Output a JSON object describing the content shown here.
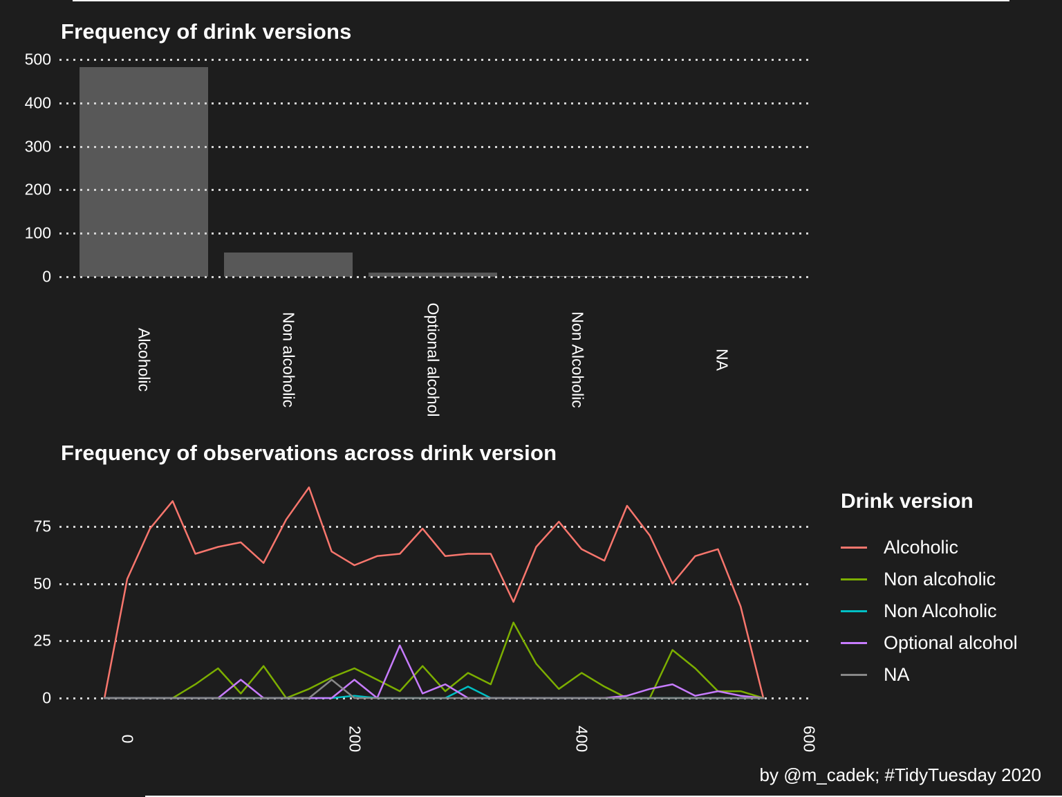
{
  "page": {
    "background": "#1d1d1d",
    "caption": "by @m_cadek; #TidyTuesday 2020"
  },
  "chart_data": [
    {
      "type": "bar",
      "title": "Frequency of drink versions",
      "categories": [
        "Alcoholic",
        "Non alcoholic",
        "Optional alcohol",
        "Non Alcoholic",
        "NA"
      ],
      "values": [
        483,
        56,
        9,
        2,
        1
      ],
      "xlabel": "",
      "ylabel": "",
      "ylim": [
        0,
        500
      ],
      "yticks": [
        0,
        100,
        200,
        300,
        400,
        500
      ],
      "bar_color": "#585858",
      "grid": "horizontal-dotted",
      "grid_color": "#d4d4d4",
      "text_color": "#ffffff"
    },
    {
      "type": "line",
      "title": "Frequency of observations across drink version",
      "x": [
        -20,
        0,
        20,
        40,
        60,
        80,
        100,
        120,
        140,
        160,
        180,
        200,
        220,
        240,
        260,
        280,
        300,
        320,
        340,
        360,
        380,
        400,
        420,
        440,
        460,
        480,
        500,
        520,
        540,
        560
      ],
      "series": [
        {
          "name": "Alcoholic",
          "color": "#F8766D",
          "values": [
            0,
            52,
            74,
            86,
            63,
            66,
            68,
            59,
            78,
            92,
            64,
            58,
            62,
            63,
            74,
            62,
            63,
            63,
            42,
            66,
            77,
            65,
            60,
            84,
            71,
            50,
            62,
            65,
            40,
            0
          ]
        },
        {
          "name": "Non alcoholic",
          "color": "#7CAE00",
          "values": [
            0,
            0,
            0,
            0,
            6,
            13,
            2,
            14,
            0,
            4,
            9,
            13,
            8,
            3,
            14,
            3,
            11,
            6,
            33,
            15,
            4,
            11,
            5,
            0,
            0,
            21,
            13,
            3,
            3,
            0
          ]
        },
        {
          "name": "Non Alcoholic",
          "color": "#00BFC4",
          "values": [
            0,
            0,
            0,
            0,
            0,
            0,
            0,
            0,
            0,
            0,
            0,
            1,
            0,
            0,
            0,
            0,
            5,
            0,
            0,
            0,
            0,
            0,
            0,
            0,
            0,
            0,
            0,
            0,
            0,
            0
          ]
        },
        {
          "name": "Optional alcohol",
          "color": "#C77CFF",
          "values": [
            0,
            0,
            0,
            0,
            0,
            0,
            8,
            0,
            0,
            0,
            0,
            8,
            0,
            23,
            2,
            6,
            0,
            0,
            0,
            0,
            0,
            0,
            0,
            1,
            4,
            6,
            1,
            3,
            1,
            0
          ]
        },
        {
          "name": "NA",
          "color": "#888888",
          "values": [
            0,
            0,
            0,
            0,
            0,
            0,
            0,
            0,
            0,
            0,
            8,
            0,
            0,
            0,
            0,
            0,
            0,
            0,
            0,
            0,
            0,
            0,
            0,
            0,
            0,
            0,
            0,
            0,
            0,
            0
          ]
        }
      ],
      "xlim": [
        -28,
        600
      ],
      "ylim": [
        0,
        96
      ],
      "xticks": [
        0,
        200,
        400,
        600
      ],
      "yticks": [
        0,
        25,
        50,
        75
      ],
      "grid": "horizontal-dotted",
      "grid_color": "#d4d4d4",
      "text_color": "#ffffff",
      "legend_title": "Drink version",
      "legend_position": "right"
    }
  ]
}
